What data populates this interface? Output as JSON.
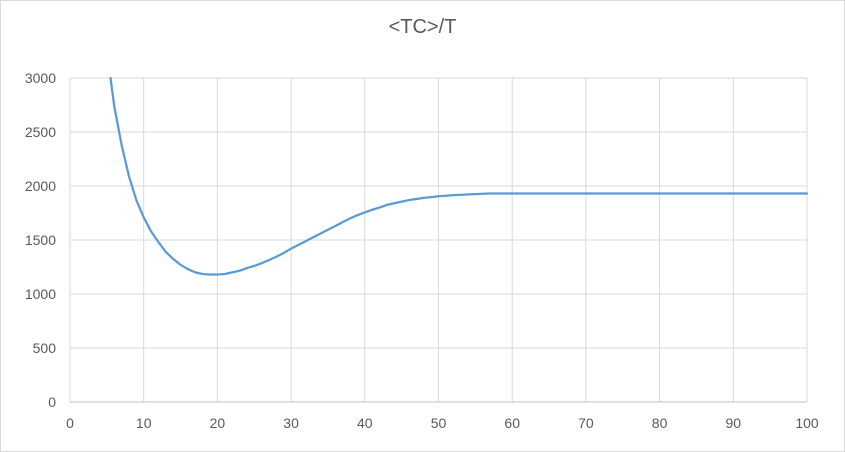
{
  "chart_data": {
    "type": "line",
    "title": "<TC>/T",
    "xlabel": "",
    "ylabel": "",
    "xlim": [
      0,
      100
    ],
    "ylim": [
      0,
      3000
    ],
    "x_ticks": [
      0,
      10,
      20,
      30,
      40,
      50,
      60,
      70,
      80,
      90,
      100
    ],
    "y_ticks": [
      0,
      500,
      1000,
      1500,
      2000,
      2500,
      3000
    ],
    "grid": true,
    "legend": "none",
    "series": [
      {
        "color": "#5b9bd5",
        "x": [
          5.5,
          6,
          7,
          8,
          9,
          10,
          11,
          12,
          13,
          14,
          15,
          16,
          17,
          18,
          19,
          20,
          21,
          22,
          23,
          24,
          25,
          26,
          27,
          28,
          29,
          30,
          31,
          32,
          33,
          34,
          35,
          36,
          37,
          38,
          39,
          40,
          41,
          42,
          43,
          44,
          45,
          46,
          47,
          48,
          49,
          50,
          51,
          52,
          53,
          54,
          55,
          56,
          57,
          58,
          60,
          65,
          70,
          75,
          80,
          85,
          90,
          95,
          100
        ],
        "y": [
          3000,
          2740,
          2380,
          2090,
          1870,
          1710,
          1580,
          1480,
          1390,
          1325,
          1270,
          1230,
          1200,
          1185,
          1180,
          1180,
          1185,
          1200,
          1215,
          1240,
          1260,
          1285,
          1315,
          1345,
          1380,
          1420,
          1455,
          1490,
          1525,
          1560,
          1595,
          1630,
          1665,
          1700,
          1730,
          1755,
          1780,
          1800,
          1825,
          1840,
          1855,
          1870,
          1880,
          1890,
          1897,
          1905,
          1910,
          1915,
          1918,
          1922,
          1925,
          1928,
          1930,
          1930,
          1930,
          1930,
          1930,
          1930,
          1930,
          1930,
          1930,
          1930,
          1930
        ]
      }
    ]
  }
}
